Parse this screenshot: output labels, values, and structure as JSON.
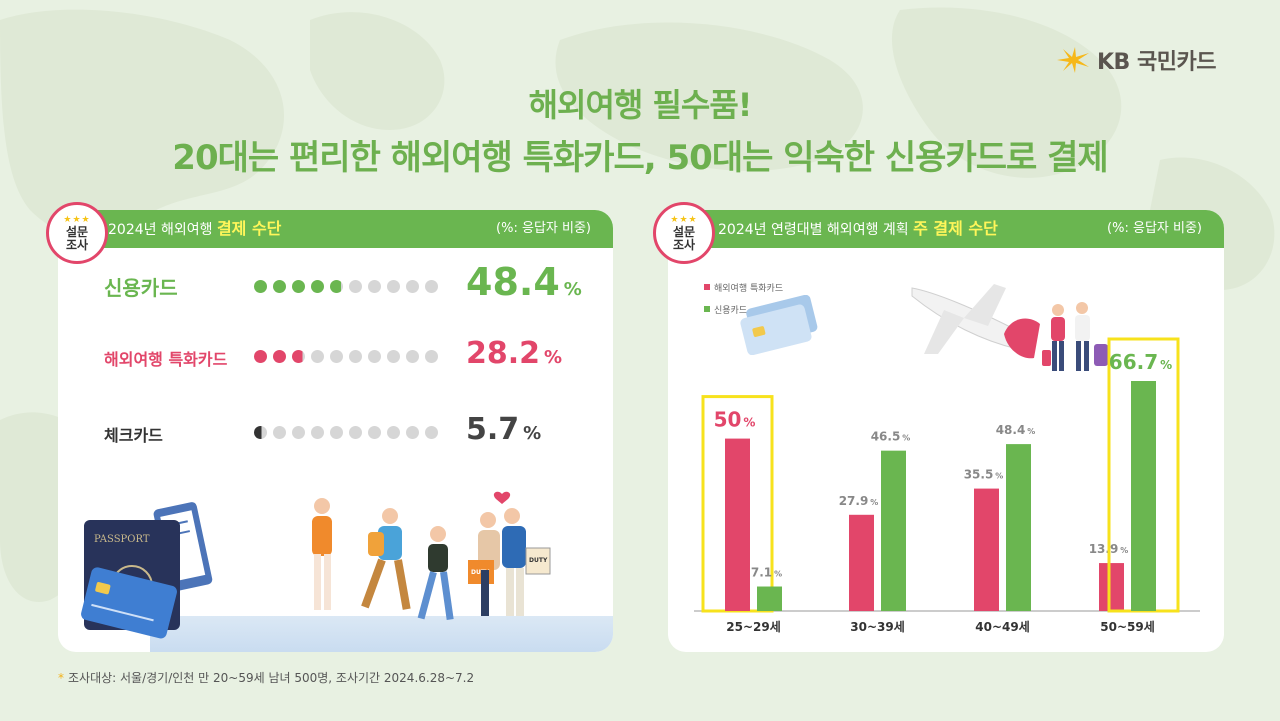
{
  "brand": {
    "logo_text": "KB 국민카드"
  },
  "title": {
    "line1": "해외여행 필수품!",
    "line2": "20대는 편리한 해외여행 특화카드, 50대는 익숙한 신용카드로 결제"
  },
  "badge": {
    "line1": "설문",
    "line2": "조사"
  },
  "left_panel": {
    "title_prefix": "2024년 해외여행 ",
    "title_highlight": "결제 수단",
    "unit": "(%: 응답자 비중)",
    "rows": [
      {
        "label": "신용카드",
        "value": "48.4",
        "pct_symbol": "%",
        "fraction": 0.484,
        "color": "#6ab650"
      },
      {
        "label": "해외여행 특화카드",
        "value": "28.2",
        "pct_symbol": "%",
        "fraction": 0.282,
        "color": "#e2466a"
      },
      {
        "label": "체크카드",
        "value": "5.7",
        "pct_symbol": "%",
        "fraction": 0.057,
        "color": "#333333"
      }
    ]
  },
  "right_panel": {
    "title_prefix": "2024년 연령대별 해외여행 계획 ",
    "title_highlight": "주 결제 수단",
    "unit": "(%: 응답자 비중)"
  },
  "chart_data": {
    "type": "bar",
    "categories": [
      "25~29세",
      "30~39세",
      "40~49세",
      "50~59세"
    ],
    "series": [
      {
        "name": "해외여행 특화카드",
        "color": "#e2466a",
        "values": [
          50,
          27.9,
          35.5,
          13.9
        ],
        "labels": [
          "50",
          "27.9",
          "35.5",
          "13.9"
        ]
      },
      {
        "name": "신용카드",
        "color": "#6ab650",
        "values": [
          7.1,
          46.5,
          48.4,
          66.7
        ],
        "labels": [
          "7.1",
          "46.5",
          "48.4",
          "66.7"
        ]
      }
    ],
    "pct_symbol": "%",
    "highlighted": [
      {
        "category": "25~29세",
        "series": "해외여행 특화카드"
      },
      {
        "category": "50~59세",
        "series": "신용카드"
      }
    ],
    "highlight_color": "#f7e21c",
    "ylim": [
      0,
      70
    ],
    "title": "",
    "xlabel": "",
    "ylabel": ""
  },
  "footnote": {
    "symbol": "*",
    "text": "조사대상: 서울/경기/인천 만 20~59세 남녀 500명, 조사기간 2024.6.28~7.2"
  }
}
